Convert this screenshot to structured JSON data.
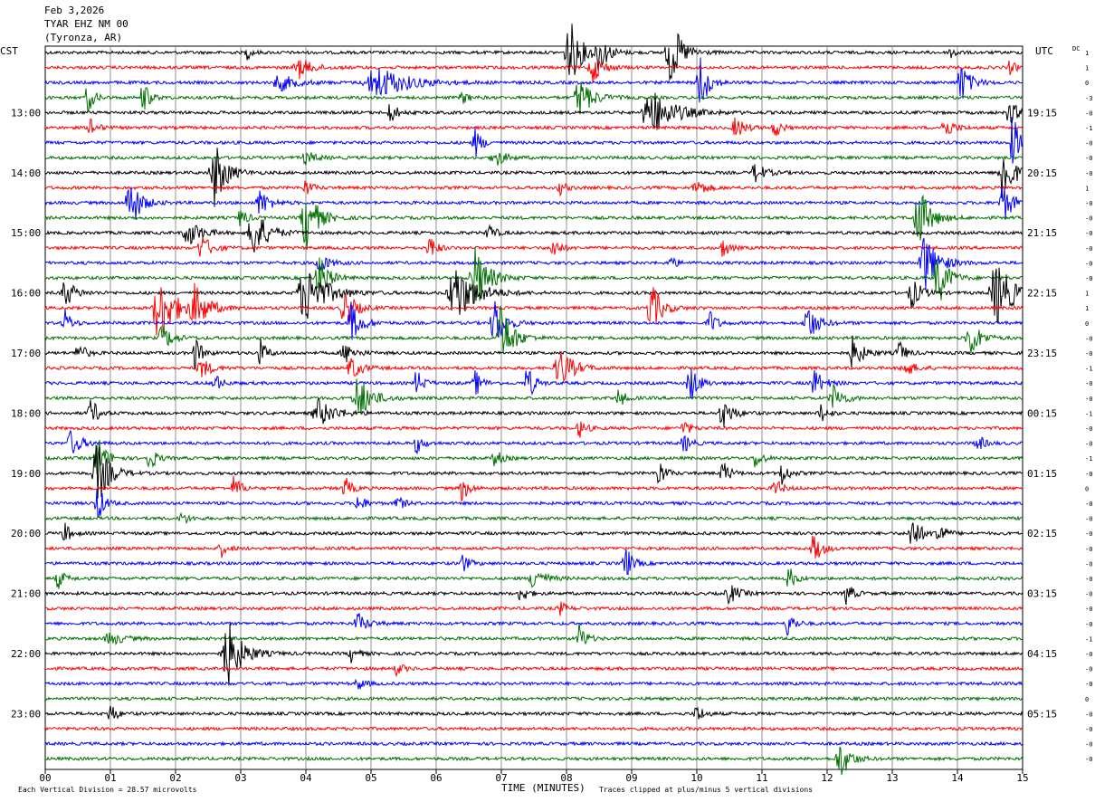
{
  "chart_data": {
    "type": "line",
    "title_lines": [
      "Feb 3,2026",
      "TYAR EHZ NM 00",
      "(Tyronza, AR)"
    ],
    "left_axis_label": "CST",
    "right_axis_label": "UTC",
    "dc_label": "DC",
    "xlabel": "TIME (MINUTES)",
    "xlim": [
      0,
      15
    ],
    "x_ticks": [
      "00",
      "01",
      "02",
      "03",
      "04",
      "05",
      "06",
      "07",
      "08",
      "09",
      "10",
      "11",
      "12",
      "13",
      "14",
      "15"
    ],
    "grid": true,
    "trace_colors": [
      "#000000",
      "#ff0000",
      "#0000ff",
      "#007000"
    ],
    "trace_count": 48,
    "minutes_per_trace": 15,
    "cst_hour_labels": [
      "13:00",
      "14:00",
      "15:00",
      "16:00",
      "17:00",
      "18:00",
      "19:00",
      "20:00",
      "21:00",
      "22:00",
      "23:00"
    ],
    "utc_hour_labels": [
      "19:15",
      "20:15",
      "21:15",
      "22:15",
      "23:15",
      "00:15",
      "01:15",
      "02:15",
      "03:15",
      "04:15",
      "05:15"
    ],
    "dc_offsets": [
      "1",
      "1",
      "0",
      "-3",
      "-0",
      "-1",
      "-0",
      "-0",
      "-0",
      "1",
      "-0",
      "-0",
      "-0",
      "-0",
      "-0",
      "-0",
      "1",
      "1",
      "0",
      "-0",
      "-0",
      "-1",
      "-0",
      "-0",
      "-1",
      "-0",
      "-0",
      "-1",
      "-0",
      "0",
      "-0",
      "-0",
      "-0",
      "-0",
      "-0",
      "-0",
      "-0",
      "-0",
      "-0",
      "-1",
      "-0",
      "-0",
      "-0",
      "0",
      "-0",
      "-0",
      "-0",
      "-0"
    ],
    "footer_left": "Each Vertical Division =   28.57 microvolts",
    "footer_right": "Traces clipped at plus/minus 5 vertical divisions",
    "events": [
      {
        "trace": 0,
        "minute": 8.05,
        "amp": 1.0,
        "dur": 0.35
      },
      {
        "trace": 0,
        "minute": 8.5,
        "amp": 0.5,
        "dur": 0.3
      },
      {
        "trace": 0,
        "minute": 9.6,
        "amp": 1.0,
        "dur": 0.35
      },
      {
        "trace": 0,
        "minute": 3.1,
        "amp": 0.2,
        "dur": 0.15
      },
      {
        "trace": 0,
        "minute": 13.9,
        "amp": 0.25,
        "dur": 0.15
      },
      {
        "trace": 1,
        "minute": 3.9,
        "amp": 0.3,
        "dur": 0.4
      },
      {
        "trace": 1,
        "minute": 8.4,
        "amp": 0.45,
        "dur": 0.3
      },
      {
        "trace": 1,
        "minute": 14.8,
        "amp": 0.2,
        "dur": 0.2
      },
      {
        "trace": 2,
        "minute": 5.1,
        "amp": 0.5,
        "dur": 0.9
      },
      {
        "trace": 2,
        "minute": 10.05,
        "amp": 0.9,
        "dur": 0.25
      },
      {
        "trace": 2,
        "minute": 14.05,
        "amp": 0.6,
        "dur": 0.3
      },
      {
        "trace": 2,
        "minute": 3.6,
        "amp": 0.25,
        "dur": 0.5
      },
      {
        "trace": 3,
        "minute": 0.65,
        "amp": 0.45,
        "dur": 0.2
      },
      {
        "trace": 3,
        "minute": 1.5,
        "amp": 0.5,
        "dur": 0.2
      },
      {
        "trace": 3,
        "minute": 8.2,
        "amp": 0.6,
        "dur": 0.4
      },
      {
        "trace": 3,
        "minute": 6.4,
        "amp": 0.2,
        "dur": 0.2
      },
      {
        "trace": 4,
        "minute": 9.3,
        "amp": 0.7,
        "dur": 0.7
      },
      {
        "trace": 4,
        "minute": 5.3,
        "amp": 0.35,
        "dur": 0.2
      },
      {
        "trace": 4,
        "minute": 14.8,
        "amp": 0.4,
        "dur": 0.25
      },
      {
        "trace": 5,
        "minute": 0.7,
        "amp": 0.3,
        "dur": 0.2
      },
      {
        "trace": 5,
        "minute": 10.6,
        "amp": 0.3,
        "dur": 0.3
      },
      {
        "trace": 5,
        "minute": 11.2,
        "amp": 0.3,
        "dur": 0.2
      },
      {
        "trace": 5,
        "minute": 13.8,
        "amp": 0.3,
        "dur": 0.3
      },
      {
        "trace": 6,
        "minute": 6.6,
        "amp": 0.45,
        "dur": 0.2
      },
      {
        "trace": 6,
        "minute": 14.85,
        "amp": 0.9,
        "dur": 0.2
      },
      {
        "trace": 7,
        "minute": 6.9,
        "amp": 0.3,
        "dur": 0.3
      },
      {
        "trace": 7,
        "minute": 4.0,
        "amp": 0.2,
        "dur": 0.3
      },
      {
        "trace": 8,
        "minute": 2.6,
        "amp": 1.0,
        "dur": 0.35
      },
      {
        "trace": 8,
        "minute": 14.7,
        "amp": 1.0,
        "dur": 0.3
      },
      {
        "trace": 8,
        "minute": 10.9,
        "amp": 0.3,
        "dur": 0.3
      },
      {
        "trace": 9,
        "minute": 4.0,
        "amp": 0.25,
        "dur": 0.2
      },
      {
        "trace": 9,
        "minute": 10.0,
        "amp": 0.25,
        "dur": 0.3
      },
      {
        "trace": 9,
        "minute": 7.9,
        "amp": 0.2,
        "dur": 0.2
      },
      {
        "trace": 10,
        "minute": 1.3,
        "amp": 0.9,
        "dur": 0.3
      },
      {
        "trace": 10,
        "minute": 3.3,
        "amp": 0.4,
        "dur": 0.3
      },
      {
        "trace": 10,
        "minute": 14.7,
        "amp": 0.6,
        "dur": 0.3
      },
      {
        "trace": 11,
        "minute": 4.0,
        "amp": 1.0,
        "dur": 0.35
      },
      {
        "trace": 11,
        "minute": 13.4,
        "amp": 1.0,
        "dur": 0.35
      },
      {
        "trace": 11,
        "minute": 3.0,
        "amp": 0.3,
        "dur": 0.2
      },
      {
        "trace": 12,
        "minute": 2.2,
        "amp": 0.4,
        "dur": 0.4
      },
      {
        "trace": 12,
        "minute": 3.2,
        "amp": 0.8,
        "dur": 0.4
      },
      {
        "trace": 12,
        "minute": 6.8,
        "amp": 0.3,
        "dur": 0.2
      },
      {
        "trace": 13,
        "minute": 2.4,
        "amp": 0.4,
        "dur": 0.3
      },
      {
        "trace": 13,
        "minute": 5.9,
        "amp": 0.4,
        "dur": 0.2
      },
      {
        "trace": 13,
        "minute": 7.8,
        "amp": 0.35,
        "dur": 0.2
      },
      {
        "trace": 13,
        "minute": 10.4,
        "amp": 0.3,
        "dur": 0.2
      },
      {
        "trace": 14,
        "minute": 4.2,
        "amp": 0.3,
        "dur": 0.3
      },
      {
        "trace": 14,
        "minute": 13.5,
        "amp": 0.9,
        "dur": 0.4
      },
      {
        "trace": 14,
        "minute": 9.6,
        "amp": 0.2,
        "dur": 0.2
      },
      {
        "trace": 15,
        "minute": 4.2,
        "amp": 0.7,
        "dur": 0.3
      },
      {
        "trace": 15,
        "minute": 6.6,
        "amp": 1.0,
        "dur": 0.4
      },
      {
        "trace": 15,
        "minute": 13.7,
        "amp": 0.9,
        "dur": 0.3
      },
      {
        "trace": 16,
        "minute": 0.3,
        "amp": 0.45,
        "dur": 0.3
      },
      {
        "trace": 16,
        "minute": 4.0,
        "amp": 0.9,
        "dur": 0.6
      },
      {
        "trace": 16,
        "minute": 6.3,
        "amp": 0.9,
        "dur": 0.6
      },
      {
        "trace": 16,
        "minute": 13.3,
        "amp": 0.45,
        "dur": 0.3
      },
      {
        "trace": 16,
        "minute": 14.6,
        "amp": 1.0,
        "dur": 0.5
      },
      {
        "trace": 17,
        "minute": 1.75,
        "amp": 1.0,
        "dur": 0.5
      },
      {
        "trace": 17,
        "minute": 2.3,
        "amp": 0.6,
        "dur": 0.4
      },
      {
        "trace": 17,
        "minute": 4.6,
        "amp": 0.6,
        "dur": 0.3
      },
      {
        "trace": 17,
        "minute": 9.3,
        "amp": 0.8,
        "dur": 0.3
      },
      {
        "trace": 18,
        "minute": 0.3,
        "amp": 0.4,
        "dur": 0.2
      },
      {
        "trace": 18,
        "minute": 4.7,
        "amp": 0.6,
        "dur": 0.3
      },
      {
        "trace": 18,
        "minute": 6.9,
        "amp": 0.8,
        "dur": 0.3
      },
      {
        "trace": 18,
        "minute": 10.2,
        "amp": 0.4,
        "dur": 0.2
      },
      {
        "trace": 18,
        "minute": 11.7,
        "amp": 0.6,
        "dur": 0.3
      },
      {
        "trace": 19,
        "minute": 1.8,
        "amp": 0.4,
        "dur": 0.3
      },
      {
        "trace": 19,
        "minute": 7.0,
        "amp": 1.0,
        "dur": 0.35
      },
      {
        "trace": 19,
        "minute": 14.2,
        "amp": 0.6,
        "dur": 0.3
      },
      {
        "trace": 20,
        "minute": 0.5,
        "amp": 0.4,
        "dur": 0.2
      },
      {
        "trace": 20,
        "minute": 2.3,
        "amp": 0.5,
        "dur": 0.2
      },
      {
        "trace": 20,
        "minute": 3.3,
        "amp": 0.4,
        "dur": 0.2
      },
      {
        "trace": 20,
        "minute": 4.6,
        "amp": 0.3,
        "dur": 0.3
      },
      {
        "trace": 20,
        "minute": 12.4,
        "amp": 0.5,
        "dur": 0.3
      },
      {
        "trace": 20,
        "minute": 13.1,
        "amp": 0.4,
        "dur": 0.2
      },
      {
        "trace": 21,
        "minute": 2.4,
        "amp": 0.3,
        "dur": 0.3
      },
      {
        "trace": 21,
        "minute": 4.7,
        "amp": 0.35,
        "dur": 0.3
      },
      {
        "trace": 21,
        "minute": 7.9,
        "amp": 0.6,
        "dur": 0.4
      },
      {
        "trace": 21,
        "minute": 13.2,
        "amp": 0.25,
        "dur": 0.3
      },
      {
        "trace": 22,
        "minute": 2.6,
        "amp": 0.3,
        "dur": 0.2
      },
      {
        "trace": 22,
        "minute": 5.7,
        "amp": 0.4,
        "dur": 0.2
      },
      {
        "trace": 22,
        "minute": 6.6,
        "amp": 0.4,
        "dur": 0.2
      },
      {
        "trace": 22,
        "minute": 7.4,
        "amp": 0.6,
        "dur": 0.2
      },
      {
        "trace": 22,
        "minute": 9.9,
        "amp": 0.6,
        "dur": 0.25
      },
      {
        "trace": 22,
        "minute": 11.8,
        "amp": 0.4,
        "dur": 0.3
      },
      {
        "trace": 23,
        "minute": 4.8,
        "amp": 0.7,
        "dur": 0.4
      },
      {
        "trace": 23,
        "minute": 8.8,
        "amp": 0.3,
        "dur": 0.2
      },
      {
        "trace": 23,
        "minute": 12.1,
        "amp": 0.4,
        "dur": 0.3
      },
      {
        "trace": 24,
        "minute": 0.7,
        "amp": 0.5,
        "dur": 0.2
      },
      {
        "trace": 24,
        "minute": 4.2,
        "amp": 0.4,
        "dur": 0.5
      },
      {
        "trace": 24,
        "minute": 10.4,
        "amp": 0.45,
        "dur": 0.3
      },
      {
        "trace": 24,
        "minute": 11.9,
        "amp": 0.3,
        "dur": 0.2
      },
      {
        "trace": 25,
        "minute": 8.2,
        "amp": 0.3,
        "dur": 0.2
      },
      {
        "trace": 25,
        "minute": 9.8,
        "amp": 0.25,
        "dur": 0.2
      },
      {
        "trace": 26,
        "minute": 0.4,
        "amp": 0.4,
        "dur": 0.3
      },
      {
        "trace": 26,
        "minute": 5.7,
        "amp": 0.3,
        "dur": 0.2
      },
      {
        "trace": 26,
        "minute": 9.8,
        "amp": 0.3,
        "dur": 0.2
      },
      {
        "trace": 26,
        "minute": 14.3,
        "amp": 0.3,
        "dur": 0.2
      },
      {
        "trace": 27,
        "minute": 0.8,
        "amp": 0.7,
        "dur": 0.25
      },
      {
        "trace": 27,
        "minute": 1.6,
        "amp": 0.4,
        "dur": 0.2
      },
      {
        "trace": 27,
        "minute": 6.9,
        "amp": 0.3,
        "dur": 0.2
      },
      {
        "trace": 27,
        "minute": 10.9,
        "amp": 0.3,
        "dur": 0.2
      },
      {
        "trace": 28,
        "minute": 0.8,
        "amp": 1.0,
        "dur": 0.35
      },
      {
        "trace": 28,
        "minute": 9.4,
        "amp": 0.5,
        "dur": 0.2
      },
      {
        "trace": 28,
        "minute": 10.4,
        "amp": 0.4,
        "dur": 0.2
      },
      {
        "trace": 28,
        "minute": 11.3,
        "amp": 0.4,
        "dur": 0.2
      },
      {
        "trace": 29,
        "minute": 2.9,
        "amp": 0.4,
        "dur": 0.2
      },
      {
        "trace": 29,
        "minute": 4.6,
        "amp": 0.35,
        "dur": 0.2
      },
      {
        "trace": 29,
        "minute": 6.4,
        "amp": 0.4,
        "dur": 0.2
      },
      {
        "trace": 29,
        "minute": 11.2,
        "amp": 0.3,
        "dur": 0.2
      },
      {
        "trace": 30,
        "minute": 0.8,
        "amp": 0.6,
        "dur": 0.2
      },
      {
        "trace": 30,
        "minute": 4.8,
        "amp": 0.3,
        "dur": 0.2
      },
      {
        "trace": 30,
        "minute": 5.4,
        "amp": 0.25,
        "dur": 0.2
      },
      {
        "trace": 31,
        "minute": 2.1,
        "amp": 0.2,
        "dur": 0.2
      },
      {
        "trace": 32,
        "minute": 0.3,
        "amp": 0.3,
        "dur": 0.2
      },
      {
        "trace": 32,
        "minute": 13.3,
        "amp": 0.6,
        "dur": 0.25
      },
      {
        "trace": 32,
        "minute": 13.7,
        "amp": 0.4,
        "dur": 0.2
      },
      {
        "trace": 33,
        "minute": 2.7,
        "amp": 0.25,
        "dur": 0.2
      },
      {
        "trace": 33,
        "minute": 11.8,
        "amp": 0.45,
        "dur": 0.25
      },
      {
        "trace": 34,
        "minute": 6.4,
        "amp": 0.3,
        "dur": 0.2
      },
      {
        "trace": 34,
        "minute": 8.9,
        "amp": 0.6,
        "dur": 0.2
      },
      {
        "trace": 35,
        "minute": 0.2,
        "amp": 0.3,
        "dur": 0.2
      },
      {
        "trace": 35,
        "minute": 7.5,
        "amp": 0.4,
        "dur": 0.3
      },
      {
        "trace": 35,
        "minute": 11.4,
        "amp": 0.4,
        "dur": 0.2
      },
      {
        "trace": 36,
        "minute": 7.3,
        "amp": 0.3,
        "dur": 0.2
      },
      {
        "trace": 36,
        "minute": 10.5,
        "amp": 0.3,
        "dur": 0.3
      },
      {
        "trace": 36,
        "minute": 12.3,
        "amp": 0.35,
        "dur": 0.2
      },
      {
        "trace": 37,
        "minute": 7.9,
        "amp": 0.2,
        "dur": 0.2
      },
      {
        "trace": 38,
        "minute": 4.8,
        "amp": 0.3,
        "dur": 0.3
      },
      {
        "trace": 38,
        "minute": 11.4,
        "amp": 0.4,
        "dur": 0.2
      },
      {
        "trace": 39,
        "minute": 1.0,
        "amp": 0.2,
        "dur": 0.4
      },
      {
        "trace": 39,
        "minute": 8.2,
        "amp": 0.45,
        "dur": 0.2
      },
      {
        "trace": 40,
        "minute": 2.8,
        "amp": 1.0,
        "dur": 0.45
      },
      {
        "trace": 40,
        "minute": 4.7,
        "amp": 0.25,
        "dur": 0.2
      },
      {
        "trace": 41,
        "minute": 5.4,
        "amp": 0.2,
        "dur": 0.2
      },
      {
        "trace": 42,
        "minute": 4.8,
        "amp": 0.2,
        "dur": 0.2
      },
      {
        "trace": 44,
        "minute": 1.0,
        "amp": 0.3,
        "dur": 0.2
      },
      {
        "trace": 44,
        "minute": 10.0,
        "amp": 0.3,
        "dur": 0.2
      },
      {
        "trace": 47,
        "minute": 12.2,
        "amp": 0.6,
        "dur": 0.3
      }
    ]
  }
}
